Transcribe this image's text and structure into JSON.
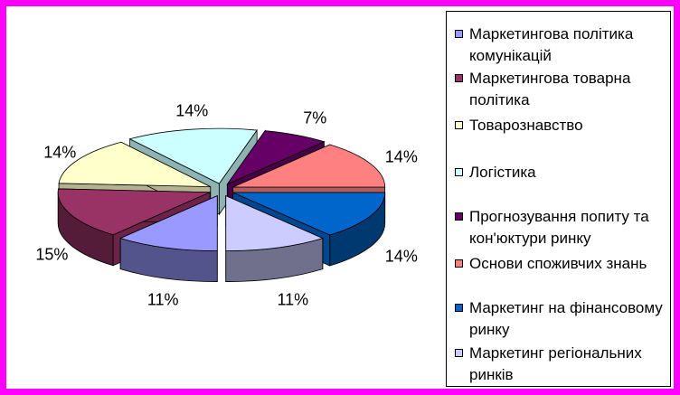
{
  "chart_data": {
    "type": "pie",
    "style": "3d-exploded",
    "title": "",
    "legend_position": "right",
    "slices": [
      {
        "label": "Маркетингова політика комунікацій",
        "value": 11,
        "value_label": "11%",
        "color": "#9999ff"
      },
      {
        "label": "Маркетингова товарна політика",
        "value": 15,
        "value_label": "15%",
        "color": "#993366"
      },
      {
        "label": "Товарознавство",
        "value": 14,
        "value_label": "14%",
        "color": "#ffffcc"
      },
      {
        "label": "Логістика",
        "value": 14,
        "value_label": "14%",
        "color": "#ccffff"
      },
      {
        "label": "Прогнозування попиту та кон'юктури ринку",
        "value": 7,
        "value_label": "7%",
        "color": "#660066"
      },
      {
        "label": "Основи споживчих знань",
        "value": 14,
        "value_label": "14%",
        "color": "#ff8080"
      },
      {
        "label": "Маркетинг на фінансовому ринку",
        "value": 14,
        "value_label": "14%",
        "color": "#0066cc"
      },
      {
        "label": "Маркетинг регіональних ринків",
        "value": 11,
        "value_label": "11%",
        "color": "#ccccff"
      }
    ]
  },
  "frame": {
    "border_color": "#ff00ff"
  }
}
